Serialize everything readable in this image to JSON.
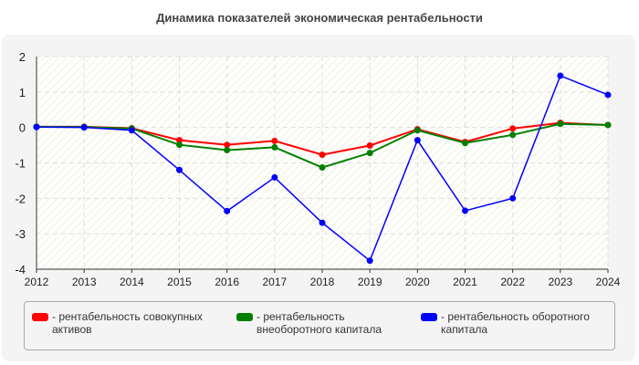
{
  "title": "Динамика показателей экономическая рентабельности",
  "chart_data": {
    "type": "line",
    "title": "Динамика показателей экономическая рентабельности",
    "x": [
      2012,
      2013,
      2014,
      2015,
      2016,
      2017,
      2018,
      2019,
      2020,
      2021,
      2022,
      2023,
      2024
    ],
    "ylim": [
      -4,
      2
    ],
    "yticks": [
      2,
      1,
      0,
      -1,
      -2,
      -3,
      -4
    ],
    "grid": true,
    "legend_position": "bottom",
    "series": [
      {
        "name": "- рентабельность совокупных активов",
        "color": "#ff0000",
        "values": [
          0.02,
          0.02,
          -0.02,
          -0.36,
          -0.49,
          -0.38,
          -0.77,
          -0.51,
          -0.05,
          -0.41,
          -0.03,
          0.13,
          0.07
        ]
      },
      {
        "name": "- рентабельность внеоборотного капитала",
        "color": "#008000",
        "values": [
          0.02,
          0.01,
          -0.03,
          -0.49,
          -0.64,
          -0.56,
          -1.13,
          -0.72,
          -0.08,
          -0.44,
          -0.21,
          0.1,
          0.07
        ]
      },
      {
        "name": "- рентабельность оборотного капитала",
        "color": "#0000ff",
        "values": [
          0.01,
          0.0,
          -0.08,
          -1.2,
          -2.36,
          -1.41,
          -2.69,
          -3.76,
          -0.36,
          -2.35,
          -2.0,
          1.46,
          0.92
        ]
      }
    ]
  }
}
